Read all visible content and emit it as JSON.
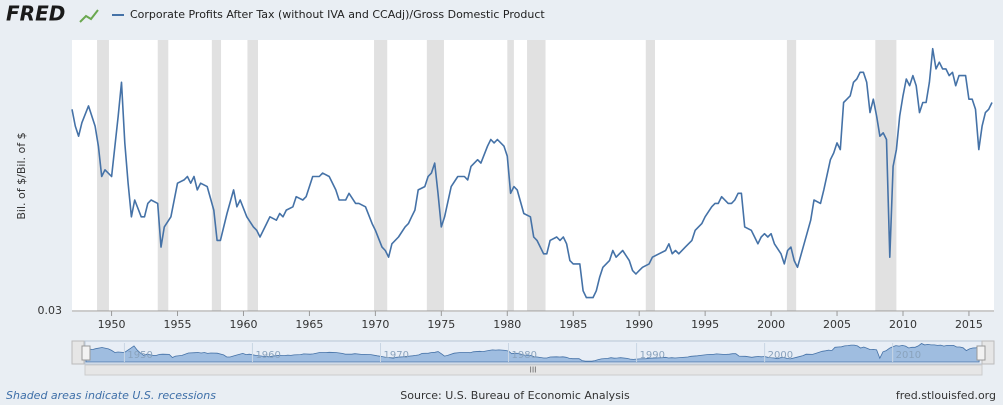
{
  "chart_data": {
    "type": "line",
    "logo": "FRED",
    "series": [
      {
        "name": "Corporate Profits After Tax (without IVA and CCAdj)/Gross Domestic Product",
        "color": "#4572a7",
        "values": [
          0.09,
          0.085,
          0.082,
          0.086,
          0.091,
          0.085,
          0.079,
          0.07,
          0.072,
          0.07,
          0.088,
          0.098,
          0.08,
          0.068,
          0.058,
          0.063,
          0.058,
          0.058,
          0.062,
          0.063,
          0.062,
          0.049,
          0.055,
          0.058,
          0.068,
          0.069,
          0.07,
          0.068,
          0.07,
          0.066,
          0.068,
          0.067,
          0.06,
          0.051,
          0.051,
          0.059,
          0.066,
          0.061,
          0.063,
          0.058,
          0.055,
          0.054,
          0.052,
          0.056,
          0.058,
          0.057,
          0.059,
          0.058,
          0.06,
          0.061,
          0.064,
          0.063,
          0.064,
          0.07,
          0.07,
          0.071,
          0.07,
          0.066,
          0.063,
          0.063,
          0.065,
          0.062,
          0.062,
          0.061,
          0.056,
          0.054,
          0.049,
          0.048,
          0.046,
          0.05,
          0.052,
          0.055,
          0.056,
          0.058,
          0.06,
          0.066,
          0.067,
          0.07,
          0.071,
          0.074,
          0.065,
          0.055,
          0.058,
          0.067,
          0.07,
          0.07,
          0.069,
          0.073,
          0.075,
          0.074,
          0.079,
          0.081,
          0.08,
          0.081,
          0.079,
          0.076,
          0.065,
          0.067,
          0.066,
          0.059,
          0.058,
          0.052,
          0.051,
          0.047,
          0.047,
          0.051,
          0.052,
          0.051,
          0.052,
          0.05,
          0.045,
          0.044,
          0.044,
          0.036,
          0.034,
          0.034,
          0.034,
          0.036,
          0.04,
          0.043,
          0.045,
          0.048,
          0.046,
          0.047,
          0.048,
          0.045,
          0.042,
          0.041,
          0.042,
          0.043,
          0.044,
          0.046,
          0.047,
          0.048,
          0.05,
          0.047,
          0.048,
          0.047,
          0.049,
          0.051,
          0.054,
          0.056,
          0.058,
          0.061,
          0.062,
          0.062,
          0.064,
          0.062,
          0.062,
          0.063,
          0.065,
          0.065,
          0.055,
          0.054,
          0.052,
          0.05,
          0.052,
          0.053,
          0.052,
          0.053,
          0.05,
          0.047,
          0.044,
          0.048,
          0.049,
          0.045,
          0.043,
          0.05,
          0.057,
          0.063,
          0.062,
          0.066,
          0.075,
          0.077,
          0.08,
          0.078,
          0.092,
          0.093,
          0.094,
          0.098,
          0.099,
          0.101,
          0.101,
          0.098,
          0.089,
          0.093,
          0.088,
          0.082,
          0.083,
          0.081,
          0.046,
          0.073,
          0.078,
          0.088,
          0.094,
          0.099,
          0.097,
          0.1,
          0.097,
          0.089,
          0.092,
          0.092,
          0.098,
          0.108,
          0.102,
          0.104,
          0.102,
          0.102,
          0.1,
          0.101,
          0.097,
          0.1,
          0.1,
          0.1,
          0.093,
          0.093,
          0.09,
          0.078,
          0.085,
          0.089,
          0.09,
          0.092
        ]
      }
    ],
    "x": [
      1947.0,
      1947.25,
      1947.5,
      1947.75,
      1948.25,
      1948.75,
      1949.0,
      1949.25,
      1949.5,
      1950.0,
      1950.5,
      1950.75,
      1951.0,
      1951.25,
      1951.5,
      1951.75,
      1952.25,
      1952.5,
      1952.75,
      1953.0,
      1953.5,
      1953.75,
      1954.0,
      1954.5,
      1955.0,
      1955.5,
      1955.75,
      1956.0,
      1956.25,
      1956.5,
      1956.75,
      1957.25,
      1957.75,
      1958.0,
      1958.25,
      1958.75,
      1959.25,
      1959.5,
      1959.75,
      1960.25,
      1960.75,
      1961.0,
      1961.25,
      1961.75,
      1962.0,
      1962.5,
      1962.75,
      1963.0,
      1963.25,
      1963.75,
      1964.0,
      1964.5,
      1964.75,
      1965.25,
      1965.75,
      1966.0,
      1966.5,
      1967.0,
      1967.25,
      1967.75,
      1968.0,
      1968.5,
      1968.75,
      1969.25,
      1969.75,
      1970.0,
      1970.5,
      1970.75,
      1971.0,
      1971.25,
      1971.75,
      1972.25,
      1972.5,
      1972.75,
      1973.0,
      1973.25,
      1973.75,
      1974.0,
      1974.25,
      1974.5,
      1974.75,
      1975.0,
      1975.25,
      1975.75,
      1976.25,
      1976.75,
      1977.0,
      1977.25,
      1977.75,
      1978.0,
      1978.5,
      1978.75,
      1979.0,
      1979.25,
      1979.75,
      1980.0,
      1980.25,
      1980.5,
      1980.75,
      1981.25,
      1981.75,
      1982.0,
      1982.25,
      1982.75,
      1983.0,
      1983.25,
      1983.75,
      1984.0,
      1984.25,
      1984.5,
      1984.75,
      1985.0,
      1985.5,
      1985.75,
      1986.0,
      1986.25,
      1986.5,
      1986.75,
      1987.0,
      1987.25,
      1987.75,
      1988.0,
      1988.25,
      1988.5,
      1988.75,
      1989.25,
      1989.5,
      1989.75,
      1990.0,
      1990.25,
      1990.75,
      1991.0,
      1991.5,
      1992.0,
      1992.25,
      1992.5,
      1992.75,
      1993.0,
      1993.5,
      1994.0,
      1994.25,
      1994.75,
      1995.0,
      1995.5,
      1995.75,
      1996.0,
      1996.25,
      1996.75,
      1997.0,
      1997.25,
      1997.5,
      1997.75,
      1998.0,
      1998.5,
      1998.75,
      1999.0,
      1999.25,
      1999.5,
      1999.75,
      2000.0,
      2000.25,
      2000.75,
      2001.0,
      2001.25,
      2001.5,
      2001.75,
      2002.0,
      2002.5,
      2003.0,
      2003.25,
      2003.75,
      2004.0,
      2004.5,
      2004.75,
      2005.0,
      2005.25,
      2005.5,
      2005.75,
      2006.0,
      2006.25,
      2006.5,
      2006.75,
      2007.0,
      2007.25,
      2007.5,
      2007.75,
      2008.0,
      2008.25,
      2008.5,
      2008.75,
      2009.0,
      2009.25,
      2009.5,
      2009.75,
      2010.0,
      2010.25,
      2010.5,
      2010.75,
      2011.0,
      2011.25,
      2011.5,
      2011.75,
      2012.0,
      2012.25,
      2012.5,
      2012.75,
      2013.0,
      2013.25,
      2013.5,
      2013.75,
      2014.0,
      2014.25,
      2014.5,
      2014.75,
      2015.0,
      2015.25,
      2015.5,
      2015.75,
      2016.0,
      2016.25,
      2016.5,
      2016.75
    ],
    "ylabel": "Bil. of $/Bil. of $",
    "xlim": [
      1947,
      2016.9
    ],
    "ylim": [
      0.03,
      0.11
    ],
    "xticks": [
      1950,
      1955,
      1960,
      1965,
      1970,
      1975,
      1980,
      1985,
      1990,
      1995,
      2000,
      2005,
      2010,
      2015
    ],
    "yticks": [
      "0.03"
    ],
    "grid": true,
    "recessions": [
      [
        1948.9,
        1949.8
      ],
      [
        1953.5,
        1954.3
      ],
      [
        1957.6,
        1958.3
      ],
      [
        1960.3,
        1961.1
      ],
      [
        1969.9,
        1970.9
      ],
      [
        1973.9,
        1975.2
      ],
      [
        1980.0,
        1980.5
      ],
      [
        1981.5,
        1982.9
      ],
      [
        1990.5,
        1991.2
      ],
      [
        2001.2,
        2001.9
      ],
      [
        2007.9,
        2009.5
      ]
    ],
    "navigator_ticks": [
      1950,
      1960,
      1970,
      1980,
      1990,
      2000,
      2010
    ],
    "recession_note": "Shaded areas indicate U.S. recessions",
    "source": "Source: U.S. Bureau of Economic Analysis",
    "site": "fred.stlouisfed.org"
  }
}
